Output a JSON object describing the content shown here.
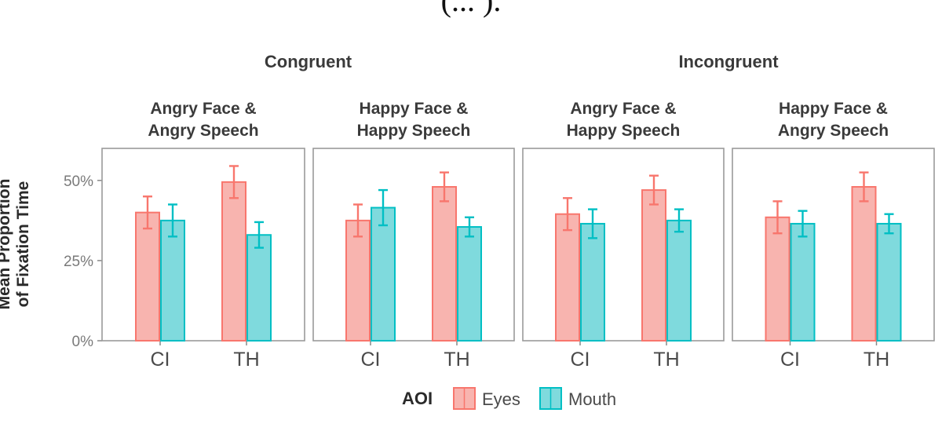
{
  "top_text": "(... ).",
  "chart_data": {
    "type": "bar",
    "y_label_lines": [
      "Mean Proportion",
      "of Fixation Time"
    ],
    "ylim": [
      0,
      60
    ],
    "yticks": [
      {
        "value": 0,
        "label": "0%"
      },
      {
        "value": 25,
        "label": "25%"
      },
      {
        "value": 50,
        "label": "50%"
      }
    ],
    "categories": [
      "CI",
      "TH"
    ],
    "series_colors": {
      "Eyes": "#F8766D",
      "Mouth": "#00BFC4"
    },
    "bar_fill_colors": {
      "Eyes": "#F8B4AF",
      "Mouth": "#7FDADD"
    },
    "legend": {
      "title": "AOI",
      "entries": [
        "Eyes",
        "Mouth"
      ],
      "placement": "bottom"
    },
    "groups": [
      {
        "title": "Congruent",
        "facets": [
          0,
          1
        ]
      },
      {
        "title": "Incongruent",
        "facets": [
          2,
          3
        ]
      }
    ],
    "facets": [
      {
        "title_lines": [
          "Angry Face &",
          "Angry Speech"
        ],
        "series": [
          {
            "name": "Eyes",
            "values": [
              40,
              49.5
            ],
            "err": [
              5,
              5
            ]
          },
          {
            "name": "Mouth",
            "values": [
              37.5,
              33
            ],
            "err": [
              5,
              4
            ]
          }
        ]
      },
      {
        "title_lines": [
          "Happy Face &",
          "Happy Speech"
        ],
        "series": [
          {
            "name": "Eyes",
            "values": [
              37.5,
              48
            ],
            "err": [
              5,
              4.5
            ]
          },
          {
            "name": "Mouth",
            "values": [
              41.5,
              35.5
            ],
            "err": [
              5.5,
              3
            ]
          }
        ]
      },
      {
        "title_lines": [
          "Angry Face &",
          "Happy Speech"
        ],
        "series": [
          {
            "name": "Eyes",
            "values": [
              39.5,
              47
            ],
            "err": [
              5,
              4.5
            ]
          },
          {
            "name": "Mouth",
            "values": [
              36.5,
              37.5
            ],
            "err": [
              4.5,
              3.5
            ]
          }
        ]
      },
      {
        "title_lines": [
          "Happy Face &",
          "Angry Speech"
        ],
        "series": [
          {
            "name": "Eyes",
            "values": [
              38.5,
              48
            ],
            "err": [
              5,
              4.5
            ]
          },
          {
            "name": "Mouth",
            "values": [
              36.5,
              36.5
            ],
            "err": [
              4,
              3
            ]
          }
        ]
      }
    ]
  }
}
